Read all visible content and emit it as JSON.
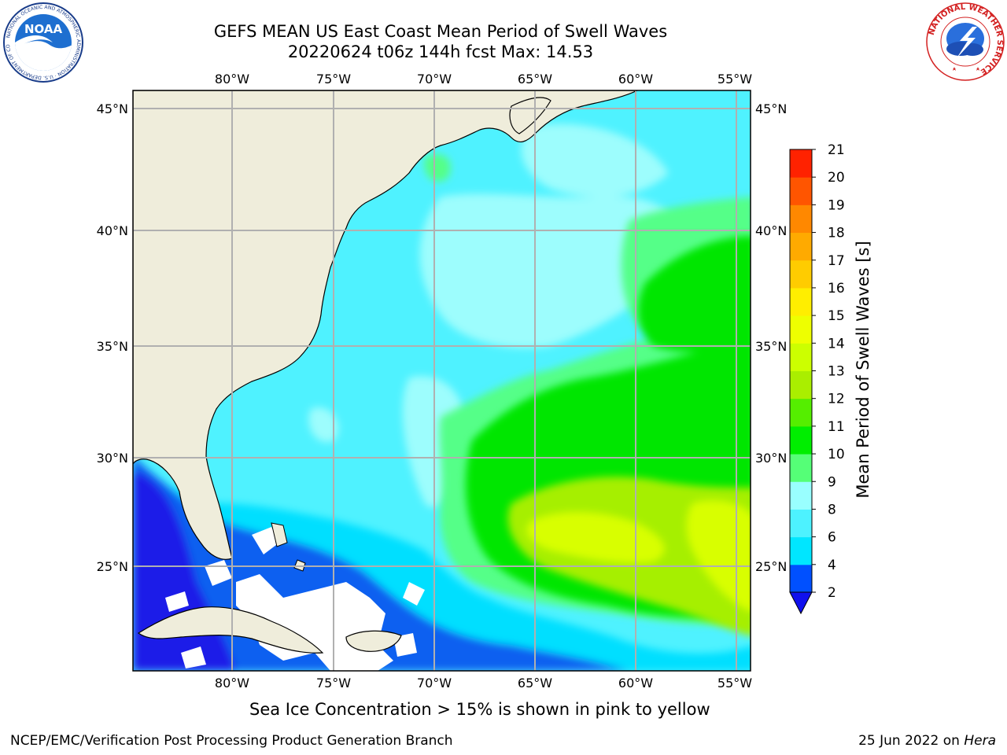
{
  "title": {
    "line1": "GEFS MEAN US East Coast Mean Period of Swell Waves",
    "line2": "20220624 t06z 144h fcst   Max: 14.53"
  },
  "map": {
    "lon_labels": [
      "80°W",
      "75°W",
      "70°W",
      "65°W",
      "60°W",
      "55°W"
    ],
    "lat_labels": [
      "45°N",
      "40°N",
      "35°N",
      "30°N",
      "25°N"
    ],
    "land_color": "#efeddb",
    "missing_color": "#ffffff",
    "grid_color": "#b0b0b0"
  },
  "colorbar": {
    "label": "Mean Period of Swell Waves [s]",
    "ticks": [
      "2",
      "4",
      "6",
      "8",
      "9",
      "10",
      "11",
      "12",
      "13",
      "14",
      "15",
      "16",
      "17",
      "18",
      "19",
      "20",
      "21"
    ],
    "colors": [
      "#0050ff",
      "#00e6ff",
      "#4df2ff",
      "#99ffff",
      "#55ff77",
      "#00ee00",
      "#55ee00",
      "#aaee00",
      "#ccff00",
      "#eeff00",
      "#ffee00",
      "#ffcc00",
      "#ffaa00",
      "#ff8800",
      "#ff5500",
      "#ff2200"
    ],
    "under_color": "#1010ee"
  },
  "caption": "Sea Ice Concentration > 15% is shown in pink to yellow",
  "footer": {
    "left": "NCEP/EMC/Verification Post Processing Product Generation Branch",
    "date": "25 Jun 2022 on",
    "machine": "Hera"
  },
  "logos": {
    "noaa_text": "NOAA",
    "noaa_ring": "NATIONAL OCEANIC AND ATMOSPHERIC ADMINISTRATION · U.S. DEPARTMENT OF COMMERCE",
    "nws_ring": "NATIONAL WEATHER SERVICE"
  }
}
